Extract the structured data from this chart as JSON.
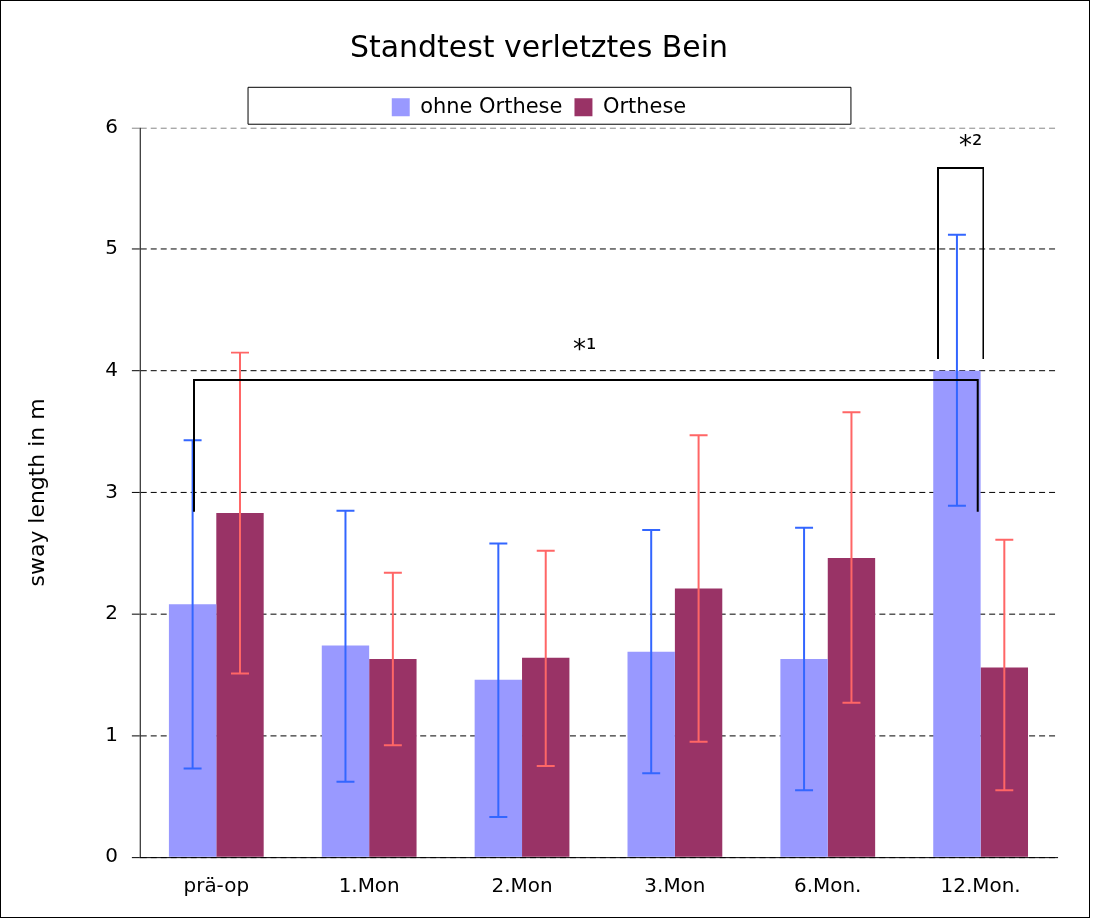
{
  "chart_data": {
    "type": "bar",
    "title": "Standtest verletztes Bein",
    "ylabel": "sway length in m",
    "categories": [
      "prä-op",
      "1.Mon",
      "2.Mon",
      "3.Mon",
      "6.Mon.",
      "12.Mon."
    ],
    "series": [
      {
        "name": "ohne Orthese",
        "color": "#9999ff",
        "values": [
          2.08,
          1.74,
          1.46,
          1.69,
          1.63,
          4.0
        ],
        "errors": [
          [
            0.73,
            3.43
          ],
          [
            0.62,
            2.85
          ],
          [
            0.33,
            2.58
          ],
          [
            0.69,
            2.69
          ],
          [
            0.55,
            2.71
          ],
          [
            2.89,
            5.12
          ]
        ]
      },
      {
        "name": "Orthese",
        "color": "#993366",
        "values": [
          2.83,
          1.63,
          1.64,
          2.21,
          2.46,
          1.56
        ],
        "errors": [
          [
            1.51,
            4.15
          ],
          [
            0.92,
            2.34
          ],
          [
            0.75,
            2.52
          ],
          [
            0.95,
            3.47
          ],
          [
            1.27,
            3.66
          ],
          [
            0.55,
            2.61
          ]
        ]
      }
    ],
    "ylim": [
      0,
      6
    ],
    "yticks": [
      0,
      1,
      2,
      3,
      4,
      5,
      6
    ],
    "grid": "y",
    "legend": "top",
    "annotations": [
      "*¹",
      "*²"
    ]
  }
}
